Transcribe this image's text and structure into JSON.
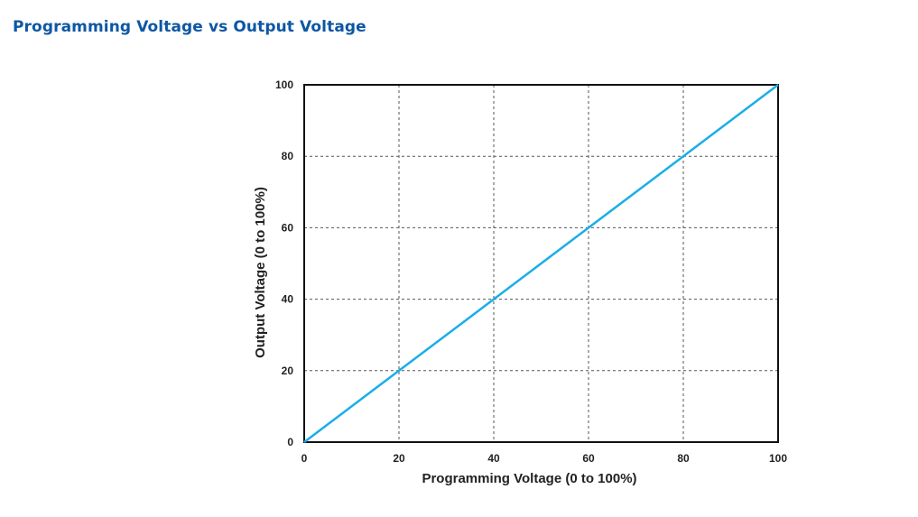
{
  "page": {
    "title": "Programming Voltage vs Output Voltage",
    "title_color": "#0d57a4"
  },
  "chart_data": {
    "type": "line",
    "title": "",
    "xlabel": "Programming Voltage (0 to 100%)",
    "ylabel": "Output Voltage (0 to 100%)",
    "xlim": [
      0,
      100
    ],
    "ylim": [
      0,
      100
    ],
    "x_ticks": [
      "0",
      "20",
      "40",
      "60",
      "80",
      "100"
    ],
    "y_ticks": [
      "0",
      "20",
      "40",
      "60",
      "80",
      "100"
    ],
    "grid": true,
    "grid_style": "dashed",
    "legend": "none",
    "series": [
      {
        "x": [
          0,
          20,
          40,
          60,
          80,
          100
        ],
        "y": [
          0,
          20,
          40,
          60,
          80,
          100
        ],
        "color": "#1aaee8"
      }
    ]
  }
}
